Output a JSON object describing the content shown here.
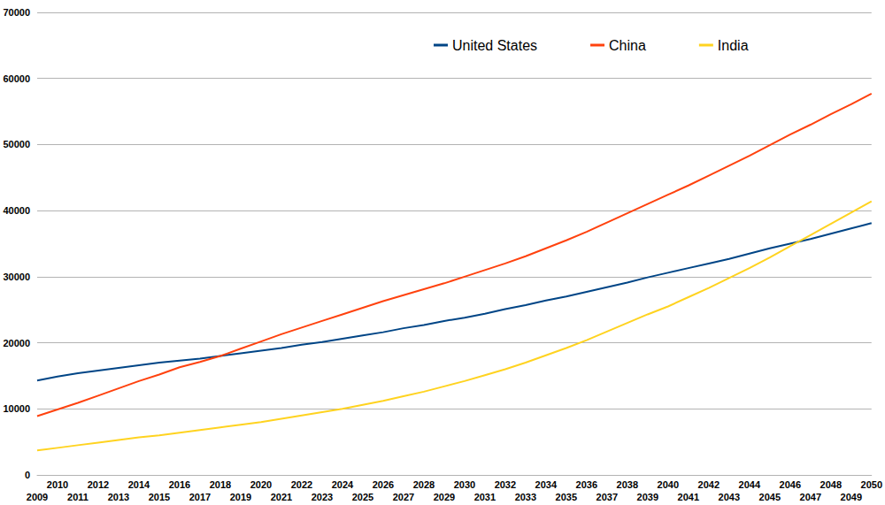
{
  "chart_data": {
    "type": "line",
    "categories": [
      "2009",
      "2010",
      "2011",
      "2012",
      "2013",
      "2014",
      "2015",
      "2016",
      "2017",
      "2018",
      "2019",
      "2020",
      "2021",
      "2022",
      "2023",
      "2024",
      "2025",
      "2026",
      "2027",
      "2028",
      "2029",
      "2030",
      "2031",
      "2032",
      "2033",
      "2034",
      "2035",
      "2036",
      "2037",
      "2038",
      "2039",
      "2040",
      "2041",
      "2042",
      "2043",
      "2044",
      "2045",
      "2046",
      "2047",
      "2048",
      "2049",
      "2050"
    ],
    "series": [
      {
        "name": "United States",
        "color": "#004586",
        "values": [
          14300,
          14900,
          15400,
          15800,
          16200,
          16600,
          17000,
          17300,
          17600,
          18000,
          18400,
          18800,
          19200,
          19700,
          20100,
          20600,
          21100,
          21600,
          22200,
          22700,
          23300,
          23800,
          24400,
          25100,
          25700,
          26400,
          27000,
          27700,
          28400,
          29100,
          29900,
          30600,
          31300,
          32000,
          32700,
          33500,
          34300,
          35000,
          35700,
          36500,
          37300,
          38100
        ]
      },
      {
        "name": "China",
        "color": "#ff420e",
        "values": [
          8900,
          9900,
          10900,
          12000,
          13100,
          14200,
          15200,
          16300,
          17100,
          18000,
          19100,
          20200,
          21300,
          22300,
          23300,
          24300,
          25300,
          26300,
          27200,
          28100,
          29000,
          30000,
          31000,
          32000,
          33100,
          34300,
          35500,
          36800,
          38200,
          39600,
          41000,
          42400,
          43800,
          45300,
          46800,
          48300,
          49900,
          51500,
          53000,
          54600,
          56100,
          57700
        ]
      },
      {
        "name": "India",
        "color": "#ffd320",
        "values": [
          3700,
          4100,
          4500,
          4900,
          5300,
          5700,
          6000,
          6400,
          6800,
          7200,
          7600,
          8000,
          8500,
          9000,
          9500,
          10000,
          10600,
          11200,
          11900,
          12600,
          13400,
          14200,
          15100,
          16000,
          17000,
          18100,
          19200,
          20400,
          21700,
          23000,
          24300,
          25500,
          26900,
          28300,
          29800,
          31300,
          32900,
          34600,
          36300,
          38000,
          39700,
          41400
        ]
      }
    ],
    "ylim": [
      0,
      70000
    ],
    "yticks": [
      0,
      10000,
      20000,
      30000,
      40000,
      50000,
      60000,
      70000
    ],
    "grid": true,
    "legend": "top"
  }
}
